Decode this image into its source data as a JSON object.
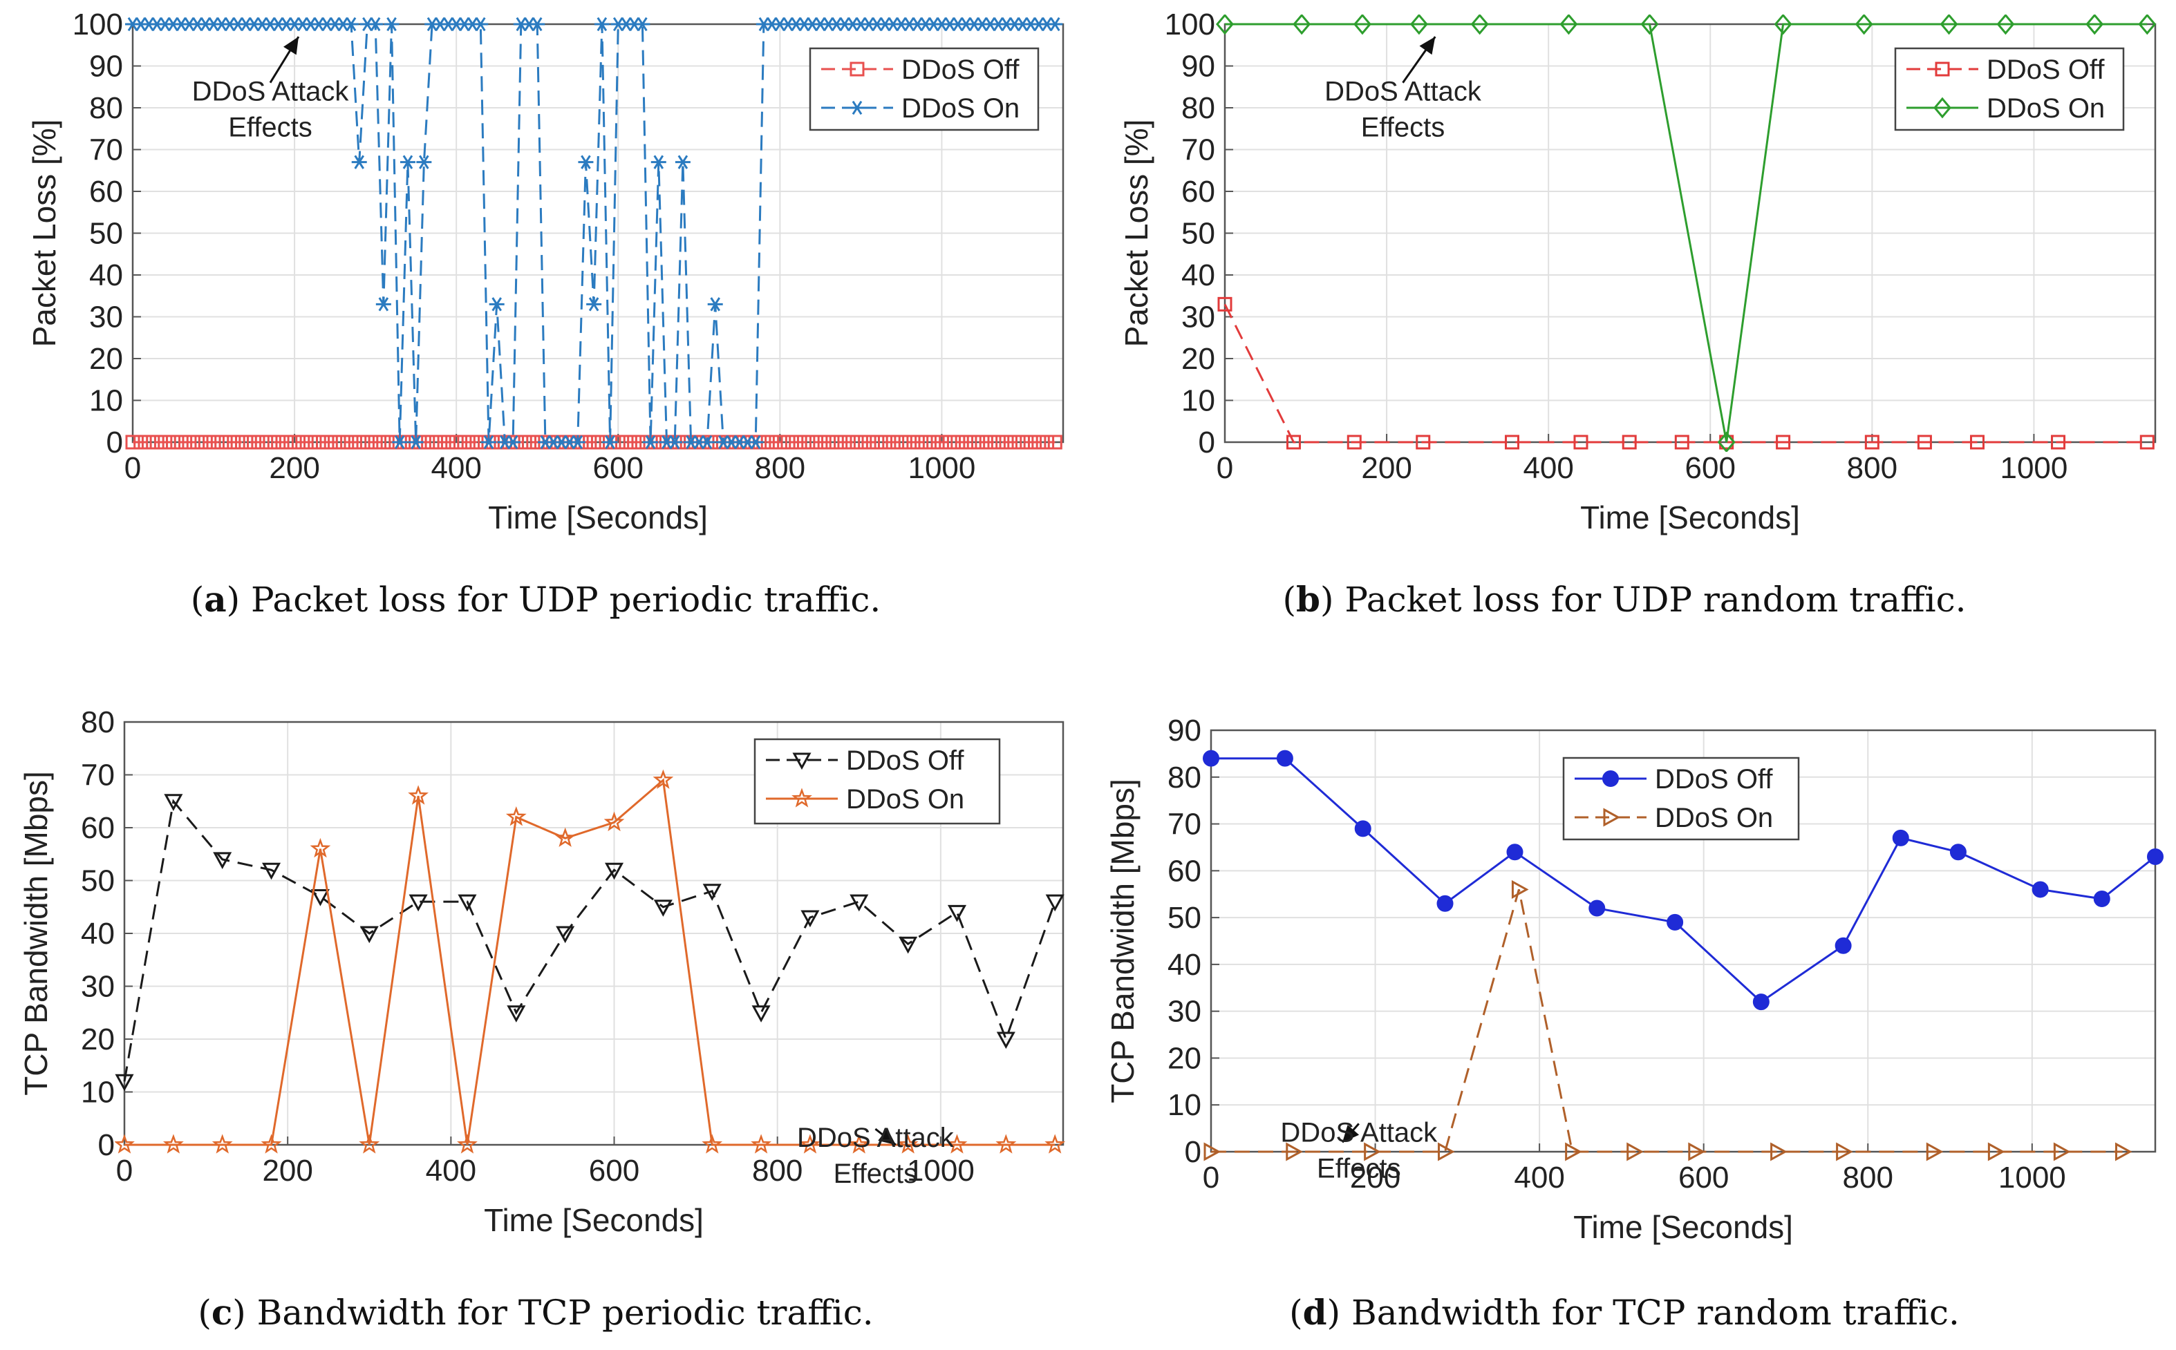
{
  "colors": {
    "udp_periodic_off": "#e8504f",
    "udp_periodic_on": "#2b7bc0",
    "udp_random_off": "#e23b3b",
    "udp_random_on": "#2e9e2e",
    "tcp_periodic_off": "#1a1a1a",
    "tcp_periodic_on": "#e0692b",
    "tcp_random_off": "#1f2bd6",
    "tcp_random_on": "#b0602a",
    "grid": "#e0e0e0",
    "axis": "#333333"
  },
  "chart_data": [
    {
      "id": "a",
      "type": "line",
      "caption_letter": "a",
      "caption_text": ") Packet loss for UDP periodic traffic.",
      "xlabel": "Time [Seconds]",
      "ylabel": "Packet Loss [%]",
      "xlim": [
        0,
        1150
      ],
      "ylim": [
        0,
        100
      ],
      "xticks": [
        0,
        200,
        400,
        600,
        800,
        1000
      ],
      "yticks": [
        0,
        10,
        20,
        30,
        40,
        50,
        60,
        70,
        80,
        90,
        100
      ],
      "legend_position": "top-right",
      "annotation": {
        "text_line1": "DDoS Attack",
        "text_line2": "Effects",
        "x_from": 170,
        "y_from": 86,
        "x_to": 205,
        "y_to": 97
      },
      "series": [
        {
          "name": "DDoS Off",
          "style": "dashed",
          "marker": "square",
          "x": [
            0,
            10,
            20,
            30,
            40,
            50,
            60,
            70,
            80,
            90,
            100,
            110,
            120,
            130,
            140,
            150,
            160,
            170,
            180,
            190,
            200,
            210,
            220,
            230,
            240,
            250,
            260,
            270,
            280,
            290,
            300,
            310,
            320,
            330,
            340,
            350,
            360,
            370,
            380,
            390,
            400,
            410,
            420,
            430,
            440,
            450,
            460,
            470,
            480,
            490,
            500,
            510,
            520,
            530,
            540,
            550,
            560,
            570,
            580,
            590,
            600,
            610,
            620,
            630,
            640,
            650,
            660,
            670,
            680,
            690,
            700,
            710,
            720,
            730,
            740,
            750,
            760,
            770,
            780,
            790,
            800,
            810,
            820,
            830,
            840,
            850,
            860,
            870,
            880,
            890,
            900,
            910,
            920,
            930,
            940,
            950,
            960,
            970,
            980,
            990,
            1000,
            1010,
            1020,
            1030,
            1040,
            1050,
            1060,
            1070,
            1080,
            1090,
            1100,
            1110,
            1120,
            1130,
            1140
          ],
          "y": [
            0,
            0,
            0,
            0,
            0,
            0,
            0,
            0,
            0,
            0,
            0,
            0,
            0,
            0,
            0,
            0,
            0,
            0,
            0,
            0,
            0,
            0,
            0,
            0,
            0,
            0,
            0,
            0,
            0,
            0,
            0,
            0,
            0,
            0,
            0,
            0,
            0,
            0,
            0,
            0,
            0,
            0,
            0,
            0,
            0,
            0,
            0,
            0,
            0,
            0,
            0,
            0,
            0,
            0,
            0,
            0,
            0,
            0,
            0,
            0,
            0,
            0,
            0,
            0,
            0,
            0,
            0,
            0,
            0,
            0,
            0,
            0,
            0,
            0,
            0,
            0,
            0,
            0,
            0,
            0,
            0,
            0,
            0,
            0,
            0,
            0,
            0,
            0,
            0,
            0,
            0,
            0,
            0,
            0,
            0,
            0,
            0,
            0,
            0,
            0,
            0,
            0,
            0,
            0,
            0,
            0,
            0,
            0,
            0,
            0,
            0,
            0,
            0,
            0,
            0
          ]
        },
        {
          "name": "DDoS On",
          "style": "dashed",
          "marker": "asterisk",
          "x": [
            0,
            10,
            20,
            30,
            40,
            50,
            60,
            70,
            80,
            90,
            100,
            110,
            120,
            130,
            140,
            150,
            160,
            170,
            180,
            190,
            200,
            210,
            220,
            230,
            240,
            250,
            260,
            270,
            280,
            290,
            300,
            310,
            320,
            330,
            340,
            350,
            360,
            370,
            380,
            390,
            400,
            410,
            420,
            430,
            440,
            450,
            460,
            470,
            480,
            490,
            500,
            510,
            520,
            530,
            540,
            550,
            560,
            570,
            580,
            590,
            600,
            610,
            620,
            630,
            640,
            650,
            660,
            670,
            680,
            690,
            700,
            710,
            720,
            730,
            740,
            750,
            760,
            770,
            780,
            790,
            800,
            810,
            820,
            830,
            840,
            850,
            860,
            870,
            880,
            890,
            900,
            910,
            920,
            930,
            940,
            950,
            960,
            970,
            980,
            990,
            1000,
            1010,
            1020,
            1030,
            1040,
            1050,
            1060,
            1070,
            1080,
            1090,
            1100,
            1110,
            1120,
            1130,
            1140
          ],
          "y": [
            100,
            100,
            100,
            100,
            100,
            100,
            100,
            100,
            100,
            100,
            100,
            100,
            100,
            100,
            100,
            100,
            100,
            100,
            100,
            100,
            100,
            100,
            100,
            100,
            100,
            100,
            100,
            100,
            67,
            100,
            100,
            33,
            100,
            0,
            67,
            0,
            67,
            100,
            100,
            100,
            100,
            100,
            100,
            100,
            0,
            33,
            0,
            0,
            100,
            100,
            100,
            0,
            0,
            0,
            0,
            0,
            67,
            33,
            100,
            0,
            100,
            100,
            100,
            100,
            0,
            67,
            0,
            0,
            67,
            0,
            0,
            0,
            33,
            0,
            0,
            0,
            0,
            0,
            100,
            100,
            100,
            100,
            100,
            100,
            100,
            100,
            100,
            100,
            100,
            100,
            100,
            100,
            100,
            100,
            100,
            100,
            100,
            100,
            100,
            100,
            100,
            100,
            100,
            100,
            100,
            100,
            100,
            100,
            100,
            100,
            100,
            100,
            100,
            100,
            100
          ]
        }
      ]
    },
    {
      "id": "b",
      "type": "line",
      "caption_letter": "b",
      "caption_text": ") Packet loss for UDP random traffic.",
      "xlabel": "Time [Seconds]",
      "ylabel": "Packet Loss [%]",
      "xlim": [
        0,
        1150
      ],
      "ylim": [
        0,
        100
      ],
      "xticks": [
        0,
        200,
        400,
        600,
        800,
        1000
      ],
      "yticks": [
        0,
        10,
        20,
        30,
        40,
        50,
        60,
        70,
        80,
        90,
        100
      ],
      "legend_position": "top-right",
      "annotation": {
        "text_line1": "DDoS Attack",
        "text_line2": "Effects",
        "x_from": 220,
        "y_from": 86,
        "x_to": 260,
        "y_to": 97
      },
      "series": [
        {
          "name": "DDoS Off",
          "style": "dashed",
          "marker": "square",
          "x": [
            0,
            85,
            160,
            245,
            355,
            440,
            500,
            565,
            620,
            690,
            800,
            865,
            930,
            1030,
            1140
          ],
          "y": [
            33,
            0,
            0,
            0,
            0,
            0,
            0,
            0,
            0,
            0,
            0,
            0,
            0,
            0,
            0
          ]
        },
        {
          "name": "DDoS On",
          "style": "solid",
          "marker": "diamond",
          "x": [
            0,
            95,
            170,
            240,
            315,
            425,
            525,
            620,
            690,
            790,
            895,
            965,
            1075,
            1140
          ],
          "y": [
            100,
            100,
            100,
            100,
            100,
            100,
            100,
            0,
            100,
            100,
            100,
            100,
            100,
            100
          ]
        }
      ]
    },
    {
      "id": "c",
      "type": "line",
      "caption_letter": "c",
      "caption_text": ") Bandwidth for TCP periodic traffic.",
      "xlabel": "Time [Seconds]",
      "ylabel": "TCP Bandwidth [Mbps]",
      "xlim": [
        0,
        1150
      ],
      "ylim": [
        0,
        80
      ],
      "xticks": [
        0,
        200,
        400,
        600,
        800,
        1000
      ],
      "yticks": [
        0,
        10,
        20,
        30,
        40,
        50,
        60,
        70,
        80
      ],
      "legend_position": "top-right",
      "annotation": {
        "text_line1": "DDoS Attack",
        "text_line2": "Effects",
        "x_from": 920,
        "y_from": 3,
        "x_to": 945,
        "y_to": 0
      },
      "series": [
        {
          "name": "DDoS Off",
          "style": "dashed",
          "marker": "triangle-down",
          "x": [
            0,
            60,
            120,
            180,
            240,
            300,
            360,
            420,
            480,
            540,
            600,
            660,
            720,
            780,
            840,
            900,
            960,
            1020,
            1080,
            1140
          ],
          "y": [
            12,
            65,
            54,
            52,
            47,
            40,
            46,
            46,
            25,
            40,
            52,
            45,
            48,
            25,
            43,
            46,
            38,
            44,
            20,
            46
          ]
        },
        {
          "name": "DDoS On",
          "style": "solid",
          "marker": "star",
          "x": [
            0,
            60,
            120,
            180,
            240,
            300,
            360,
            420,
            480,
            540,
            600,
            660,
            720,
            780,
            840,
            900,
            960,
            1020,
            1080,
            1140
          ],
          "y": [
            0,
            0,
            0,
            0,
            56,
            0,
            66,
            0,
            62,
            58,
            61,
            69,
            0,
            0,
            0,
            0,
            0,
            0,
            0,
            0
          ]
        }
      ]
    },
    {
      "id": "d",
      "type": "line",
      "caption_letter": "d",
      "caption_text": ") Bandwidth for TCP random traffic.",
      "xlabel": "Time [Seconds]",
      "ylabel": "TCP Bandwidth [Mbps]",
      "xlim": [
        0,
        1150
      ],
      "ylim": [
        0,
        90
      ],
      "xticks": [
        0,
        200,
        400,
        600,
        800,
        1000
      ],
      "yticks": [
        0,
        10,
        20,
        30,
        40,
        50,
        60,
        70,
        80,
        90
      ],
      "legend_position": "top-left",
      "annotation": {
        "text_line1": "DDoS Attack",
        "text_line2": "Effects",
        "x_from": 180,
        "y_from": 6,
        "x_to": 160,
        "y_to": 2
      },
      "series": [
        {
          "name": "DDoS Off",
          "style": "solid",
          "marker": "circle",
          "x": [
            0,
            90,
            185,
            285,
            370,
            470,
            565,
            670,
            770,
            840,
            910,
            1010,
            1085,
            1150
          ],
          "y": [
            84,
            84,
            69,
            53,
            64,
            52,
            49,
            32,
            44,
            67,
            64,
            56,
            54,
            63
          ]
        },
        {
          "name": "DDoS On",
          "style": "dashed",
          "marker": "triangle-right",
          "x": [
            0,
            100,
            195,
            285,
            375,
            440,
            515,
            590,
            690,
            770,
            880,
            955,
            1035,
            1110
          ],
          "y": [
            0,
            0,
            0,
            0,
            56,
            0,
            0,
            0,
            0,
            0,
            0,
            0,
            0,
            0
          ]
        }
      ]
    }
  ]
}
